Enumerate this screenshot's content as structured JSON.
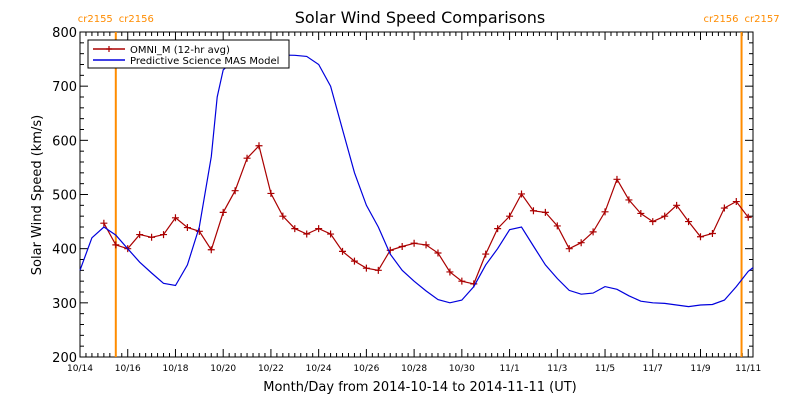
{
  "chart_data": {
    "type": "line",
    "title": "Solar Wind Speed Comparisons",
    "xlabel": "Month/Day from 2014-10-14 to 2014-11-11 (UT)",
    "ylabel": "Solar Wind Speed (km/s)",
    "xlim": [
      0,
      28.2
    ],
    "ylim": [
      200,
      800
    ],
    "ytick_values": [
      200,
      300,
      400,
      500,
      600,
      700,
      800
    ],
    "ytick_labels": [
      "200",
      "300",
      "400",
      "500",
      "600",
      "700",
      "800"
    ],
    "xtick_values": [
      0,
      2,
      4,
      6,
      8,
      10,
      12,
      14,
      16,
      18,
      20,
      22,
      24,
      26,
      28
    ],
    "xtick_labels": [
      "10/14",
      "10/16",
      "10/18",
      "10/20",
      "10/22",
      "10/24",
      "10/26",
      "10/28",
      "10/30",
      "11/1",
      "11/3",
      "11/5",
      "11/7",
      "11/9",
      "11/11"
    ],
    "legend_position": "top-left",
    "series": [
      {
        "name": "OMNI_M (12-hr avg)",
        "color": "#aa0000",
        "marker": "plus",
        "x": [
          1.0,
          1.5,
          2.0,
          2.5,
          3.0,
          3.5,
          4.0,
          4.5,
          5.0,
          5.5,
          6.0,
          6.5,
          7.0,
          7.5,
          8.0,
          8.5,
          9.0,
          9.5,
          10.0,
          10.5,
          11.0,
          11.5,
          12.0,
          12.5,
          13.0,
          13.5,
          14.0,
          14.5,
          15.0,
          15.5,
          16.0,
          16.5,
          17.0,
          17.5,
          18.0,
          18.5,
          19.0,
          19.5,
          20.0,
          20.5,
          21.0,
          21.5,
          22.0,
          22.5,
          23.0,
          23.5,
          24.0,
          24.5,
          25.0,
          25.5,
          26.0,
          26.5,
          27.0,
          27.5,
          28.0
        ],
        "values": [
          447,
          407,
          400,
          426,
          421,
          426,
          457,
          439,
          432,
          398,
          467,
          507,
          567,
          590,
          502,
          460,
          437,
          427,
          437,
          427,
          395,
          377,
          364,
          360,
          397,
          404,
          410,
          407,
          392,
          357,
          340,
          335,
          390,
          437,
          460,
          501,
          470,
          467,
          442,
          400,
          411,
          431,
          468,
          528,
          490,
          465,
          450,
          460,
          480,
          450,
          422,
          428,
          475,
          487,
          458
        ]
      },
      {
        "name": "Predictive Science MAS Model",
        "color": "#0000dd",
        "marker": "none",
        "x": [
          0.0,
          0.5,
          1.0,
          1.5,
          2.0,
          2.5,
          3.0,
          3.5,
          4.0,
          4.5,
          5.0,
          5.5,
          5.75,
          6.0,
          6.5,
          7.0,
          8.0,
          9.0,
          9.5,
          10.0,
          10.5,
          11.0,
          11.5,
          12.0,
          12.5,
          13.0,
          13.5,
          14.0,
          14.5,
          15.0,
          15.5,
          16.0,
          16.5,
          17.0,
          17.5,
          18.0,
          18.5,
          19.0,
          19.5,
          20.0,
          20.5,
          21.0,
          21.5,
          22.0,
          22.5,
          23.0,
          23.5,
          24.0,
          24.5,
          25.0,
          25.5,
          26.0,
          26.5,
          27.0,
          27.5,
          28.0,
          28.2
        ],
        "values": [
          360,
          420,
          440,
          425,
          400,
          375,
          355,
          336,
          332,
          370,
          440,
          570,
          680,
          730,
          750,
          756,
          758,
          757,
          755,
          740,
          700,
          620,
          540,
          480,
          440,
          390,
          360,
          340,
          322,
          306,
          300,
          305,
          330,
          370,
          400,
          435,
          440,
          405,
          370,
          345,
          323,
          316,
          318,
          330,
          325,
          313,
          303,
          300,
          299,
          296,
          293,
          296,
          297,
          305,
          330,
          358,
          365
        ]
      }
    ],
    "annotations": [
      {
        "x": 1.5,
        "label_left": "cr2155",
        "label_right": "cr2156",
        "color": "#ff8c00"
      },
      {
        "x": 27.72,
        "label_left": "cr2156",
        "label_right": "cr2157",
        "color": "#ff8c00"
      }
    ]
  }
}
